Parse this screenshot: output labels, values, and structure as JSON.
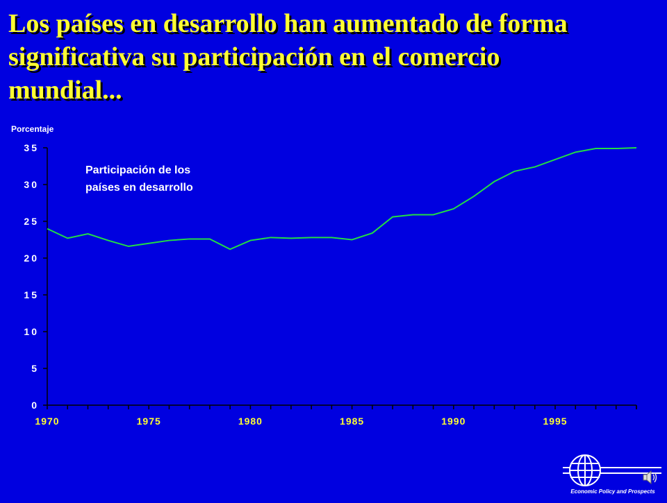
{
  "title": {
    "line1": "Los países en desarrollo han aumentado de forma",
    "line2": "significativa su participación en el comercio",
    "line3": "mundial..."
  },
  "logo": {
    "text": "Economic Policy and Prospects",
    "icon": "globe-logo-icon"
  },
  "speaker": {
    "icon": "speaker-icon"
  },
  "colors": {
    "background": "#0000e0",
    "title": "#ffff33",
    "line": "#22dd44",
    "axis_ticks_x": "#ffff33"
  },
  "chart_data": {
    "type": "line",
    "title": "",
    "ylabel": "Porcentaje",
    "xlabel": "",
    "ylim": [
      0,
      35
    ],
    "xlim": [
      1970,
      1999
    ],
    "yticks": [
      "35",
      "30",
      "25",
      "20",
      "15",
      "10",
      "5",
      "0"
    ],
    "xticks": [
      "1970",
      "1975",
      "1980",
      "1985",
      "1990",
      "1995"
    ],
    "annotation": {
      "line1": "Participación de los",
      "line2": "países en desarrollo"
    },
    "series": [
      {
        "x": [
          1970,
          1971,
          1972,
          1973,
          1974,
          1975,
          1976,
          1977,
          1978,
          1979,
          1980,
          1981,
          1982,
          1983,
          1984,
          1985,
          1986,
          1987,
          1988,
          1989,
          1990,
          1991,
          1992,
          1993,
          1994,
          1995,
          1996,
          1997,
          1998,
          1999
        ],
        "values": [
          24.0,
          22.7,
          23.3,
          22.4,
          21.6,
          22.0,
          22.4,
          22.6,
          22.6,
          21.2,
          22.4,
          22.8,
          22.7,
          22.8,
          22.8,
          22.5,
          23.4,
          25.6,
          25.9,
          25.9,
          26.7,
          28.4,
          30.4,
          31.8,
          32.4,
          33.4,
          34.4,
          34.9,
          34.9,
          35.0
        ]
      }
    ]
  }
}
